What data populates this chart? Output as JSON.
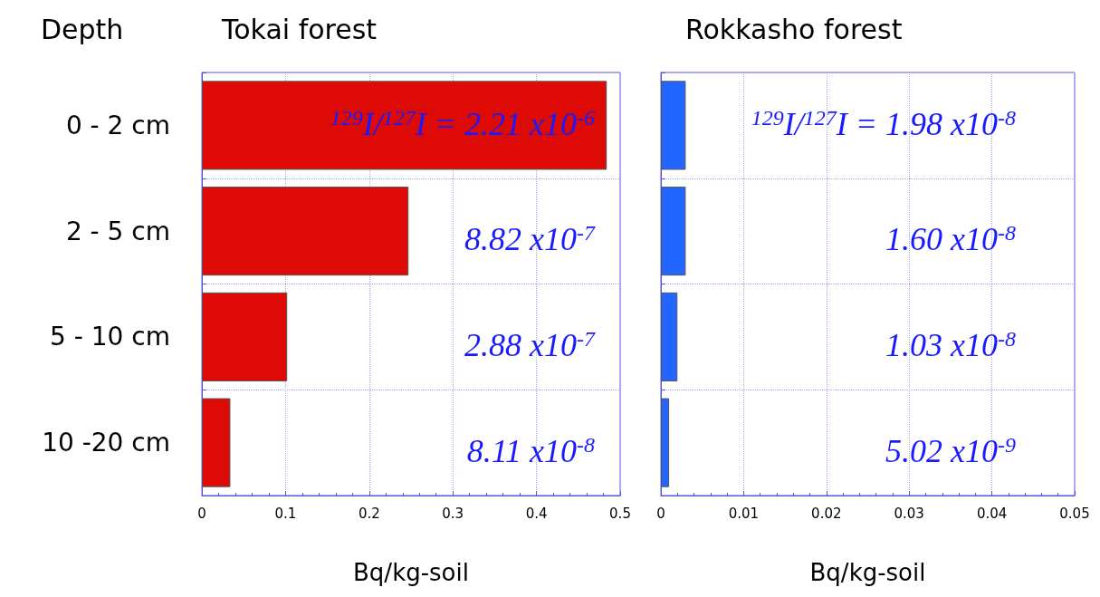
{
  "chart_data": [
    {
      "type": "bar",
      "orientation": "horizontal",
      "title": "Tokai forest",
      "ylabel": "Depth",
      "xlabel": "Bq/kg-soil",
      "categories": [
        "0 - 2 cm",
        "2 - 5 cm",
        "5 - 10 cm",
        "10 -20 cm"
      ],
      "values": [
        0.484,
        0.247,
        0.102,
        0.034
      ],
      "color": "#dd0a05",
      "xlim": [
        0,
        0.5
      ],
      "xticks": [
        0,
        0.1,
        0.2,
        0.3,
        0.4,
        0.5
      ],
      "grid": true,
      "annotations": [
        "$^{129}$I/$^{127}$I = 2.21 x10$^{-6}$",
        "8.82 x10$^{-7}$",
        "2.88 x10$^{-7}$",
        "8.11 x10$^{-8}$"
      ]
    },
    {
      "type": "bar",
      "orientation": "horizontal",
      "title": "Rokkasho forest",
      "xlabel": "Bq/kg-soil",
      "categories": [
        null,
        null,
        null,
        null
      ],
      "values": [
        0.003,
        0.003,
        0.002,
        0.001
      ],
      "color": "#2266ff",
      "xlim": [
        0,
        0.05
      ],
      "xticks": [
        0,
        0.01,
        0.02,
        0.03,
        0.04,
        0.05
      ],
      "grid": true,
      "tick_labels": "x",
      "annotations": [
        "$^{129}$I/$^{127}$I = 1.98 x10$^{-8}$",
        "1.60 x10$^{-8}$",
        "1.03 x10$^{-8}$",
        "5.02 x10$^{-9}$"
      ]
    }
  ]
}
